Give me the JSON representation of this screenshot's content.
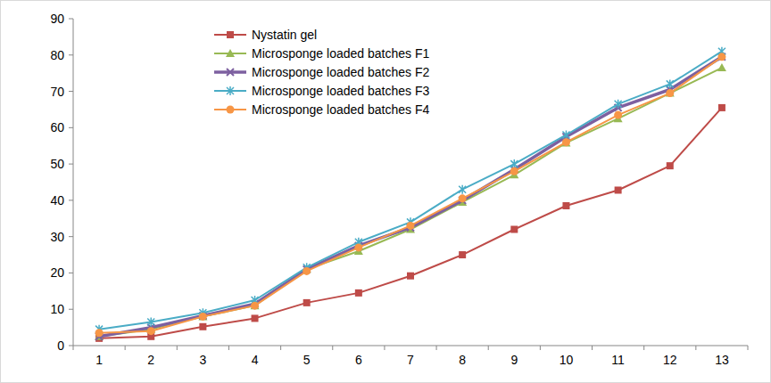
{
  "chart_data": {
    "type": "line",
    "categories": [
      "1",
      "2",
      "3",
      "4",
      "5",
      "6",
      "7",
      "8",
      "9",
      "10",
      "11",
      "12",
      "13"
    ],
    "series": [
      {
        "name": "Nystatin gel",
        "color": "#be4b48",
        "marker": "square",
        "values": [
          2,
          2.5,
          5.2,
          7.5,
          11.8,
          14.5,
          19.2,
          25,
          32,
          38.5,
          42.8,
          49.5,
          65.5
        ]
      },
      {
        "name": "Microsponge loaded batches F1",
        "color": "#98b954",
        "marker": "triangle",
        "values": [
          2.5,
          4.5,
          8,
          11,
          21,
          26,
          32,
          39.5,
          47,
          55.8,
          62.5,
          69.5,
          76.5
        ]
      },
      {
        "name": "Microsponge loaded batches F2",
        "color": "#7d60a0",
        "marker": "x",
        "values": [
          2.5,
          5,
          8.2,
          11.5,
          21,
          27.5,
          32.5,
          40,
          48.5,
          57.5,
          65.5,
          70.5,
          79.5
        ]
      },
      {
        "name": "Microsponge loaded batches F3",
        "color": "#4aacc6",
        "marker": "star",
        "values": [
          4.5,
          6.5,
          9,
          12.5,
          21.5,
          28.5,
          34,
          43,
          50,
          58,
          66.5,
          72,
          81
        ]
      },
      {
        "name": "Microsponge loaded batches F4",
        "color": "#f79646",
        "marker": "circle",
        "values": [
          3.5,
          4,
          8,
          11,
          20.5,
          27,
          33,
          40.5,
          48,
          56,
          63.5,
          69.5,
          79.5
        ]
      }
    ],
    "ylim": [
      0,
      90
    ],
    "yticks": [
      0,
      10,
      20,
      30,
      40,
      50,
      60,
      70,
      80,
      90
    ],
    "grid": false,
    "legend": "top"
  }
}
